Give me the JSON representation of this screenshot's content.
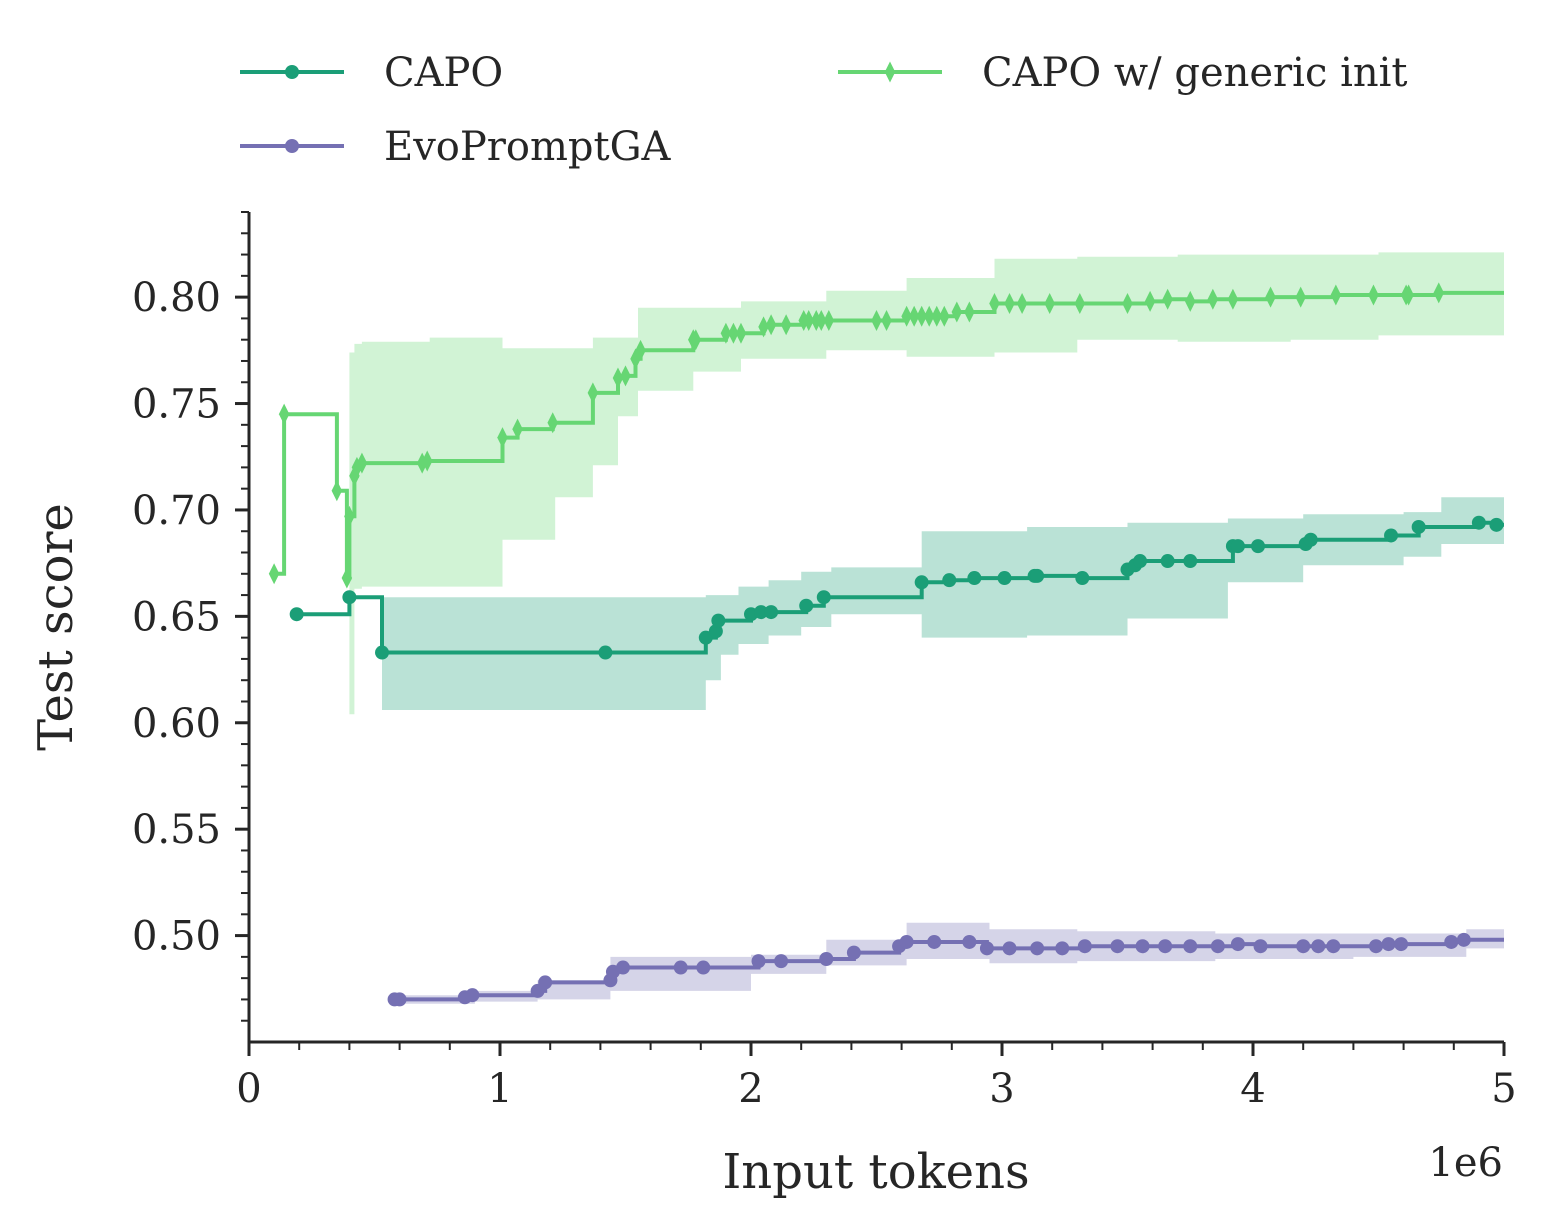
{
  "chart_data": {
    "type": "line",
    "xlabel": "Input tokens",
    "ylabel": "Test score",
    "x_offset_label": "1e6",
    "xlim": [
      0,
      5
    ],
    "ylim": [
      0.45,
      0.84
    ],
    "x_ticks": [
      0,
      1,
      2,
      3,
      4,
      5
    ],
    "x_tick_labels": [
      "0",
      "1",
      "2",
      "3",
      "4",
      "5"
    ],
    "y_ticks": [
      0.5,
      0.55,
      0.6,
      0.65,
      0.7,
      0.75,
      0.8
    ],
    "y_tick_labels": [
      "0.50",
      "0.55",
      "0.60",
      "0.65",
      "0.70",
      "0.75",
      "0.80"
    ],
    "grid": false,
    "legend_position": "top",
    "series": [
      {
        "name": "CAPO",
        "color": "#1b9e77",
        "marker": "circle",
        "x": [
          0.19,
          0.4,
          0.53,
          1.42,
          1.82,
          1.86,
          1.87,
          2.0,
          2.04,
          2.08,
          2.22,
          2.29,
          2.68,
          2.79,
          2.89,
          3.01,
          3.13,
          3.14,
          3.32,
          3.5,
          3.53,
          3.55,
          3.66,
          3.75,
          3.92,
          3.94,
          4.02,
          4.21,
          4.23,
          4.55,
          4.66,
          4.9,
          4.97
        ],
        "y": [
          0.651,
          0.659,
          0.633,
          0.633,
          0.64,
          0.643,
          0.648,
          0.651,
          0.652,
          0.652,
          0.655,
          0.659,
          0.666,
          0.667,
          0.668,
          0.668,
          0.669,
          0.669,
          0.668,
          0.672,
          0.674,
          0.676,
          0.676,
          0.676,
          0.683,
          0.683,
          0.683,
          0.684,
          0.686,
          0.688,
          0.692,
          0.694,
          0.693
        ],
        "band_x": [
          0.19,
          0.35,
          0.4,
          0.53,
          1.82,
          1.88,
          1.95,
          2.07,
          2.2,
          2.32,
          2.68,
          3.1,
          3.5,
          3.9,
          4.2,
          4.6,
          4.75,
          5.0
        ],
        "band_lower": [
          0.651,
          0.651,
          0.659,
          0.606,
          0.62,
          0.632,
          0.637,
          0.641,
          0.645,
          0.651,
          0.64,
          0.641,
          0.649,
          0.666,
          0.674,
          0.678,
          0.684,
          0.678
        ],
        "band_upper": [
          0.651,
          0.651,
          0.659,
          0.659,
          0.66,
          0.66,
          0.664,
          0.667,
          0.671,
          0.673,
          0.69,
          0.692,
          0.694,
          0.696,
          0.698,
          0.699,
          0.706,
          0.706
        ]
      },
      {
        "name": "EvoPromptGA",
        "color": "#7570b3",
        "marker": "circle",
        "x": [
          0.58,
          0.6,
          0.86,
          0.89,
          1.15,
          1.18,
          1.44,
          1.45,
          1.49,
          1.72,
          1.81,
          2.03,
          2.12,
          2.3,
          2.41,
          2.59,
          2.62,
          2.73,
          2.87,
          2.94,
          3.03,
          3.14,
          3.24,
          3.33,
          3.46,
          3.56,
          3.65,
          3.75,
          3.86,
          3.94,
          4.03,
          4.2,
          4.26,
          4.32,
          4.49,
          4.54,
          4.59,
          4.79,
          4.84
        ],
        "y": [
          0.47,
          0.47,
          0.471,
          0.472,
          0.474,
          0.478,
          0.479,
          0.483,
          0.485,
          0.485,
          0.485,
          0.488,
          0.488,
          0.489,
          0.492,
          0.495,
          0.497,
          0.497,
          0.497,
          0.494,
          0.494,
          0.494,
          0.494,
          0.495,
          0.495,
          0.495,
          0.495,
          0.495,
          0.495,
          0.496,
          0.495,
          0.495,
          0.495,
          0.495,
          0.495,
          0.496,
          0.496,
          0.497,
          0.498
        ],
        "band_x": [
          0.58,
          0.9,
          1.15,
          1.44,
          2.0,
          2.3,
          2.62,
          2.95,
          3.3,
          3.85,
          4.4,
          4.85,
          5.0
        ],
        "band_lower": [
          0.468,
          0.469,
          0.47,
          0.474,
          0.482,
          0.486,
          0.489,
          0.487,
          0.488,
          0.489,
          0.49,
          0.494,
          0.496
        ],
        "band_upper": [
          0.472,
          0.474,
          0.479,
          0.49,
          0.491,
          0.498,
          0.506,
          0.503,
          0.502,
          0.501,
          0.501,
          0.503,
          0.505
        ]
      },
      {
        "name": "CAPO w/ generic init",
        "color": "#66d673",
        "marker": "diamond",
        "x": [
          0.1,
          0.14,
          0.35,
          0.39,
          0.4,
          0.42,
          0.43,
          0.45,
          0.69,
          0.71,
          1.01,
          1.07,
          1.21,
          1.37,
          1.47,
          1.5,
          1.54,
          1.56,
          1.77,
          1.78,
          1.9,
          1.93,
          1.96,
          2.05,
          2.08,
          2.14,
          2.21,
          2.23,
          2.26,
          2.28,
          2.31,
          2.5,
          2.54,
          2.62,
          2.65,
          2.68,
          2.71,
          2.74,
          2.77,
          2.82,
          2.87,
          2.97,
          3.03,
          3.08,
          3.19,
          3.31,
          3.5,
          3.59,
          3.66,
          3.75,
          3.84,
          3.92,
          4.07,
          4.19,
          4.33,
          4.48,
          4.61,
          4.62,
          4.74
        ],
        "y": [
          0.67,
          0.745,
          0.709,
          0.668,
          0.697,
          0.716,
          0.72,
          0.722,
          0.722,
          0.723,
          0.734,
          0.738,
          0.741,
          0.755,
          0.762,
          0.763,
          0.771,
          0.775,
          0.78,
          0.78,
          0.783,
          0.783,
          0.783,
          0.786,
          0.787,
          0.787,
          0.789,
          0.789,
          0.789,
          0.789,
          0.789,
          0.789,
          0.789,
          0.791,
          0.791,
          0.791,
          0.791,
          0.791,
          0.791,
          0.793,
          0.793,
          0.797,
          0.797,
          0.797,
          0.797,
          0.797,
          0.797,
          0.798,
          0.799,
          0.798,
          0.799,
          0.799,
          0.8,
          0.8,
          0.801,
          0.801,
          0.801,
          0.801,
          0.802
        ],
        "band_x": [
          0.4,
          0.42,
          0.45,
          0.72,
          1.01,
          1.22,
          1.37,
          1.47,
          1.55,
          1.77,
          1.96,
          2.3,
          2.62,
          2.97,
          3.3,
          3.7,
          4.15,
          4.5,
          5.0
        ],
        "band_lower": [
          0.604,
          0.663,
          0.664,
          0.664,
          0.686,
          0.706,
          0.721,
          0.744,
          0.756,
          0.765,
          0.771,
          0.775,
          0.772,
          0.774,
          0.78,
          0.779,
          0.78,
          0.782,
          0.782
        ],
        "band_upper": [
          0.774,
          0.778,
          0.779,
          0.781,
          0.776,
          0.776,
          0.781,
          0.781,
          0.795,
          0.795,
          0.798,
          0.803,
          0.809,
          0.818,
          0.819,
          0.82,
          0.82,
          0.821,
          0.821
        ]
      }
    ]
  }
}
